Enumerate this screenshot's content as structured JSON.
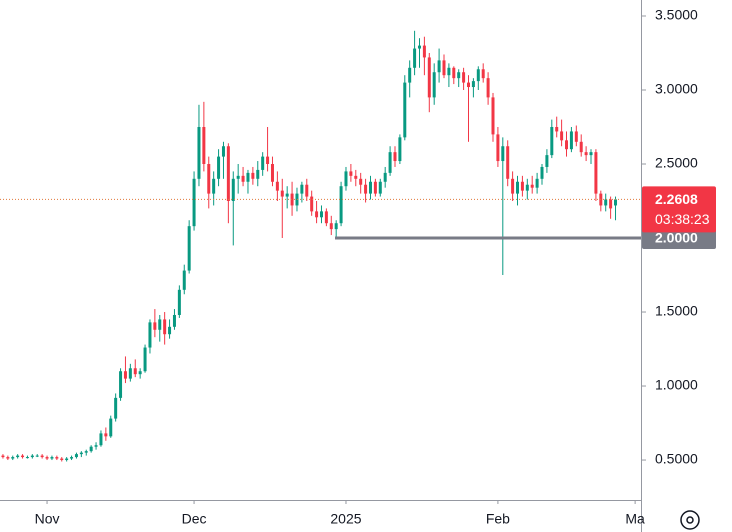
{
  "chart_data": {
    "type": "candlestick",
    "up_color": "#089981",
    "down_color": "#f23645",
    "ylim": [
      0.23,
      3.608
    ],
    "yticks": [
      {
        "value": 0.5,
        "label": "0.5000"
      },
      {
        "value": 1.0,
        "label": "1.0000"
      },
      {
        "value": 1.5,
        "label": "1.5000"
      },
      {
        "value": 2.0,
        "label": "2.0000"
      },
      {
        "value": 2.5,
        "label": "2.5000"
      },
      {
        "value": 3.0,
        "label": "3.0000"
      },
      {
        "value": 3.5,
        "label": "3.5000"
      }
    ],
    "xlim": [
      -0.6,
      130.2
    ],
    "xticks": [
      {
        "value": 9,
        "label": "Nov"
      },
      {
        "value": 39,
        "label": "Dec"
      },
      {
        "value": 70,
        "label": "2025"
      },
      {
        "value": 101,
        "label": "Feb"
      },
      {
        "value": 129,
        "label": "Ma"
      }
    ],
    "last_price": {
      "value": 2.2608,
      "label": "2.2608"
    },
    "countdown": "03:38:23",
    "level": {
      "value": 2.0,
      "label": "2.0000"
    },
    "ohlc": [
      [
        0.53,
        0.54,
        0.51,
        0.52
      ],
      [
        0.52,
        0.53,
        0.5,
        0.51
      ],
      [
        0.51,
        0.53,
        0.5,
        0.52
      ],
      [
        0.52,
        0.54,
        0.51,
        0.53
      ],
      [
        0.53,
        0.54,
        0.51,
        0.52
      ],
      [
        0.52,
        0.53,
        0.51,
        0.52
      ],
      [
        0.52,
        0.54,
        0.51,
        0.53
      ],
      [
        0.53,
        0.54,
        0.52,
        0.53
      ],
      [
        0.53,
        0.54,
        0.51,
        0.52
      ],
      [
        0.52,
        0.53,
        0.5,
        0.51
      ],
      [
        0.51,
        0.53,
        0.5,
        0.52
      ],
      [
        0.52,
        0.53,
        0.5,
        0.51
      ],
      [
        0.51,
        0.52,
        0.49,
        0.5
      ],
      [
        0.5,
        0.52,
        0.49,
        0.51
      ],
      [
        0.51,
        0.53,
        0.5,
        0.52
      ],
      [
        0.52,
        0.55,
        0.51,
        0.54
      ],
      [
        0.54,
        0.56,
        0.52,
        0.55
      ],
      [
        0.55,
        0.57,
        0.53,
        0.56
      ],
      [
        0.56,
        0.6,
        0.55,
        0.59
      ],
      [
        0.59,
        0.62,
        0.57,
        0.6
      ],
      [
        0.6,
        0.7,
        0.59,
        0.68
      ],
      [
        0.68,
        0.72,
        0.63,
        0.66
      ],
      [
        0.66,
        0.8,
        0.65,
        0.78
      ],
      [
        0.78,
        0.95,
        0.76,
        0.92
      ],
      [
        0.92,
        1.12,
        0.9,
        1.1
      ],
      [
        1.1,
        1.2,
        1.02,
        1.05
      ],
      [
        1.05,
        1.15,
        1.03,
        1.12
      ],
      [
        1.12,
        1.18,
        1.06,
        1.08
      ],
      [
        1.08,
        1.12,
        1.05,
        1.1
      ],
      [
        1.1,
        1.28,
        1.09,
        1.26
      ],
      [
        1.26,
        1.45,
        1.22,
        1.43
      ],
      [
        1.43,
        1.52,
        1.33,
        1.38
      ],
      [
        1.38,
        1.48,
        1.3,
        1.45
      ],
      [
        1.45,
        1.5,
        1.28,
        1.35
      ],
      [
        1.35,
        1.45,
        1.32,
        1.4
      ],
      [
        1.4,
        1.52,
        1.38,
        1.48
      ],
      [
        1.48,
        1.68,
        1.46,
        1.65
      ],
      [
        1.65,
        1.82,
        1.62,
        1.78
      ],
      [
        1.78,
        2.12,
        1.76,
        2.08
      ],
      [
        2.08,
        2.45,
        2.05,
        2.4
      ],
      [
        2.4,
        2.9,
        2.35,
        2.75
      ],
      [
        2.75,
        2.92,
        2.45,
        2.5
      ],
      [
        2.5,
        2.55,
        2.2,
        2.3
      ],
      [
        2.3,
        2.45,
        2.22,
        2.4
      ],
      [
        2.4,
        2.6,
        2.35,
        2.55
      ],
      [
        2.55,
        2.65,
        2.4,
        2.62
      ],
      [
        2.62,
        2.64,
        2.1,
        2.25
      ],
      [
        2.25,
        2.45,
        1.95,
        2.4
      ],
      [
        2.4,
        2.5,
        2.3,
        2.42
      ],
      [
        2.42,
        2.48,
        2.35,
        2.38
      ],
      [
        2.38,
        2.46,
        2.3,
        2.44
      ],
      [
        2.44,
        2.48,
        2.36,
        2.4
      ],
      [
        2.4,
        2.52,
        2.35,
        2.46
      ],
      [
        2.46,
        2.58,
        2.42,
        2.55
      ],
      [
        2.55,
        2.75,
        2.45,
        2.5
      ],
      [
        2.5,
        2.55,
        2.35,
        2.38
      ],
      [
        2.38,
        2.45,
        2.25,
        2.32
      ],
      [
        2.32,
        2.4,
        2.0,
        2.28
      ],
      [
        2.28,
        2.35,
        2.2,
        2.3
      ],
      [
        2.3,
        2.38,
        2.15,
        2.22
      ],
      [
        2.22,
        2.34,
        2.18,
        2.3
      ],
      [
        2.3,
        2.38,
        2.24,
        2.36
      ],
      [
        2.36,
        2.4,
        2.25,
        2.28
      ],
      [
        2.28,
        2.32,
        2.15,
        2.18
      ],
      [
        2.18,
        2.25,
        2.1,
        2.14
      ],
      [
        2.14,
        2.22,
        2.1,
        2.18
      ],
      [
        2.18,
        2.2,
        2.08,
        2.1
      ],
      [
        2.1,
        2.15,
        2.02,
        2.06
      ],
      [
        2.06,
        2.12,
        2.0,
        2.1
      ],
      [
        2.1,
        2.38,
        2.08,
        2.35
      ],
      [
        2.35,
        2.48,
        2.32,
        2.45
      ],
      [
        2.45,
        2.5,
        2.38,
        2.42
      ],
      [
        2.42,
        2.46,
        2.35,
        2.4
      ],
      [
        2.4,
        2.44,
        2.3,
        2.36
      ],
      [
        2.36,
        2.4,
        2.24,
        2.3
      ],
      [
        2.3,
        2.42,
        2.26,
        2.38
      ],
      [
        2.38,
        2.4,
        2.28,
        2.3
      ],
      [
        2.3,
        2.4,
        2.28,
        2.38
      ],
      [
        2.38,
        2.48,
        2.34,
        2.44
      ],
      [
        2.44,
        2.62,
        2.42,
        2.58
      ],
      [
        2.58,
        2.62,
        2.48,
        2.52
      ],
      [
        2.52,
        2.7,
        2.5,
        2.68
      ],
      [
        2.68,
        3.1,
        2.66,
        3.05
      ],
      [
        3.05,
        3.2,
        2.95,
        3.15
      ],
      [
        3.15,
        3.4,
        3.1,
        3.28
      ],
      [
        3.28,
        3.35,
        3.15,
        3.3
      ],
      [
        3.3,
        3.36,
        3.1,
        3.22
      ],
      [
        3.22,
        3.25,
        2.85,
        2.95
      ],
      [
        2.95,
        3.18,
        2.9,
        3.12
      ],
      [
        3.12,
        3.28,
        3.05,
        3.2
      ],
      [
        3.2,
        3.24,
        3.08,
        3.1
      ],
      [
        3.1,
        3.18,
        3.02,
        3.15
      ],
      [
        3.15,
        3.16,
        3.04,
        3.08
      ],
      [
        3.08,
        3.14,
        3.02,
        3.12
      ],
      [
        3.12,
        3.15,
        3.0,
        3.05
      ],
      [
        3.05,
        3.1,
        2.65,
        3.02
      ],
      [
        3.02,
        3.08,
        2.95,
        3.06
      ],
      [
        3.06,
        3.16,
        3.0,
        3.14
      ],
      [
        3.14,
        3.18,
        3.05,
        3.08
      ],
      [
        3.08,
        3.12,
        2.9,
        2.95
      ],
      [
        2.95,
        2.98,
        2.65,
        2.7
      ],
      [
        2.7,
        2.75,
        2.48,
        2.52
      ],
      [
        2.52,
        2.68,
        1.75,
        2.62
      ],
      [
        2.62,
        2.66,
        2.35,
        2.4
      ],
      [
        2.4,
        2.45,
        2.25,
        2.3
      ],
      [
        2.3,
        2.42,
        2.22,
        2.38
      ],
      [
        2.38,
        2.42,
        2.28,
        2.32
      ],
      [
        2.32,
        2.4,
        2.26,
        2.36
      ],
      [
        2.36,
        2.42,
        2.3,
        2.34
      ],
      [
        2.34,
        2.44,
        2.3,
        2.4
      ],
      [
        2.4,
        2.5,
        2.36,
        2.48
      ],
      [
        2.48,
        2.6,
        2.44,
        2.56
      ],
      [
        2.56,
        2.8,
        2.54,
        2.75
      ],
      [
        2.75,
        2.82,
        2.68,
        2.72
      ],
      [
        2.72,
        2.8,
        2.62,
        2.66
      ],
      [
        2.66,
        2.72,
        2.55,
        2.6
      ],
      [
        2.6,
        2.75,
        2.58,
        2.72
      ],
      [
        2.72,
        2.76,
        2.62,
        2.65
      ],
      [
        2.65,
        2.7,
        2.55,
        2.58
      ],
      [
        2.58,
        2.62,
        2.52,
        2.56
      ],
      [
        2.56,
        2.6,
        2.5,
        2.58
      ],
      [
        2.58,
        2.6,
        2.25,
        2.3
      ],
      [
        2.3,
        2.32,
        2.18,
        2.22
      ],
      [
        2.22,
        2.3,
        2.18,
        2.26
      ],
      [
        2.26,
        2.28,
        2.13,
        2.2
      ],
      [
        2.22,
        2.28,
        2.12,
        2.2608
      ]
    ]
  }
}
